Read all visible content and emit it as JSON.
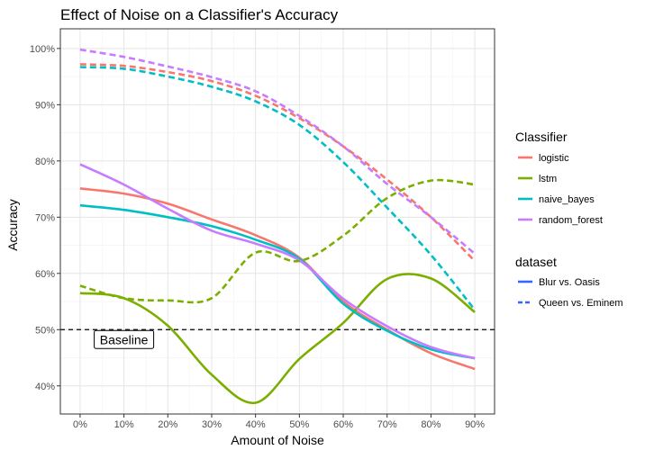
{
  "chart_data": {
    "type": "line",
    "title": "Effect of Noise on a Classifier's Accuracy",
    "xlabel": "Amount of Noise",
    "ylabel": "Accuracy",
    "x": [
      0,
      10,
      20,
      30,
      40,
      50,
      60,
      70,
      80,
      90
    ],
    "x_tick_labels": [
      "0%",
      "10%",
      "20%",
      "30%",
      "40%",
      "50%",
      "60%",
      "70%",
      "80%",
      "90%"
    ],
    "xlim": [
      -4.5,
      94.5
    ],
    "y_ticks": [
      40,
      50,
      60,
      70,
      80,
      90,
      100
    ],
    "y_tick_labels": [
      "40%",
      "50%",
      "60%",
      "70%",
      "80%",
      "90%",
      "100%"
    ],
    "ylim": [
      35,
      103.5
    ],
    "grid": true,
    "legend_position": "right",
    "colors": {
      "logistic": "#F8766D",
      "lstm": "#7CAE00",
      "naive_bayes": "#00BFC4",
      "random_forest": "#C77CFF",
      "dataset_key": "#3366ff"
    },
    "baseline": {
      "y": 50,
      "label": "Baseline",
      "label_x": 10
    },
    "series": [
      {
        "classifier": "logistic",
        "dataset": "Blur vs. Oasis",
        "linestyle": "solid",
        "values": [
          75.1,
          74.2,
          72.4,
          69.6,
          66.8,
          62.8,
          55.0,
          50.0,
          45.8,
          43.0
        ]
      },
      {
        "classifier": "lstm",
        "dataset": "Blur vs. Oasis",
        "linestyle": "solid",
        "values": [
          56.5,
          55.6,
          50.7,
          42.0,
          37.0,
          44.8,
          51.2,
          59.0,
          59.1,
          53.1
        ]
      },
      {
        "classifier": "naive_bayes",
        "dataset": "Blur vs. Oasis",
        "linestyle": "solid",
        "values": [
          72.1,
          71.3,
          70.0,
          68.4,
          66.0,
          62.6,
          54.6,
          49.8,
          46.5,
          44.9
        ]
      },
      {
        "classifier": "random_forest",
        "dataset": "Blur vs. Oasis",
        "linestyle": "solid",
        "values": [
          79.4,
          75.8,
          71.5,
          67.6,
          65.3,
          62.3,
          55.5,
          50.6,
          46.9,
          44.9
        ]
      },
      {
        "classifier": "logistic",
        "dataset": "Queen vs. Eminem",
        "linestyle": "dashed",
        "values": [
          97.2,
          96.9,
          95.8,
          94.2,
          91.6,
          87.6,
          82.6,
          76.7,
          70.0,
          62.2
        ]
      },
      {
        "classifier": "lstm",
        "dataset": "Queen vs. Eminem",
        "linestyle": "dashed",
        "values": [
          57.8,
          55.6,
          55.2,
          55.6,
          63.7,
          62.2,
          66.7,
          73.4,
          76.5,
          75.8
        ]
      },
      {
        "classifier": "naive_bayes",
        "dataset": "Queen vs. Eminem",
        "linestyle": "dashed",
        "values": [
          96.7,
          96.4,
          95.0,
          93.2,
          90.6,
          86.4,
          79.8,
          71.7,
          63.3,
          53.5
        ]
      },
      {
        "classifier": "random_forest",
        "dataset": "Queen vs. Eminem",
        "linestyle": "dashed",
        "values": [
          99.8,
          98.5,
          96.8,
          94.9,
          92.4,
          88.0,
          82.6,
          75.9,
          70.0,
          63.5
        ]
      }
    ]
  },
  "legend": {
    "classifier_title": "Classifier",
    "classifier_items": [
      "logistic",
      "lstm",
      "naive_bayes",
      "random_forest"
    ],
    "dataset_title": "dataset",
    "dataset_items": [
      {
        "label": "Blur vs. Oasis",
        "linestyle": "solid"
      },
      {
        "label": "Queen vs. Eminem",
        "linestyle": "dashed"
      }
    ]
  }
}
